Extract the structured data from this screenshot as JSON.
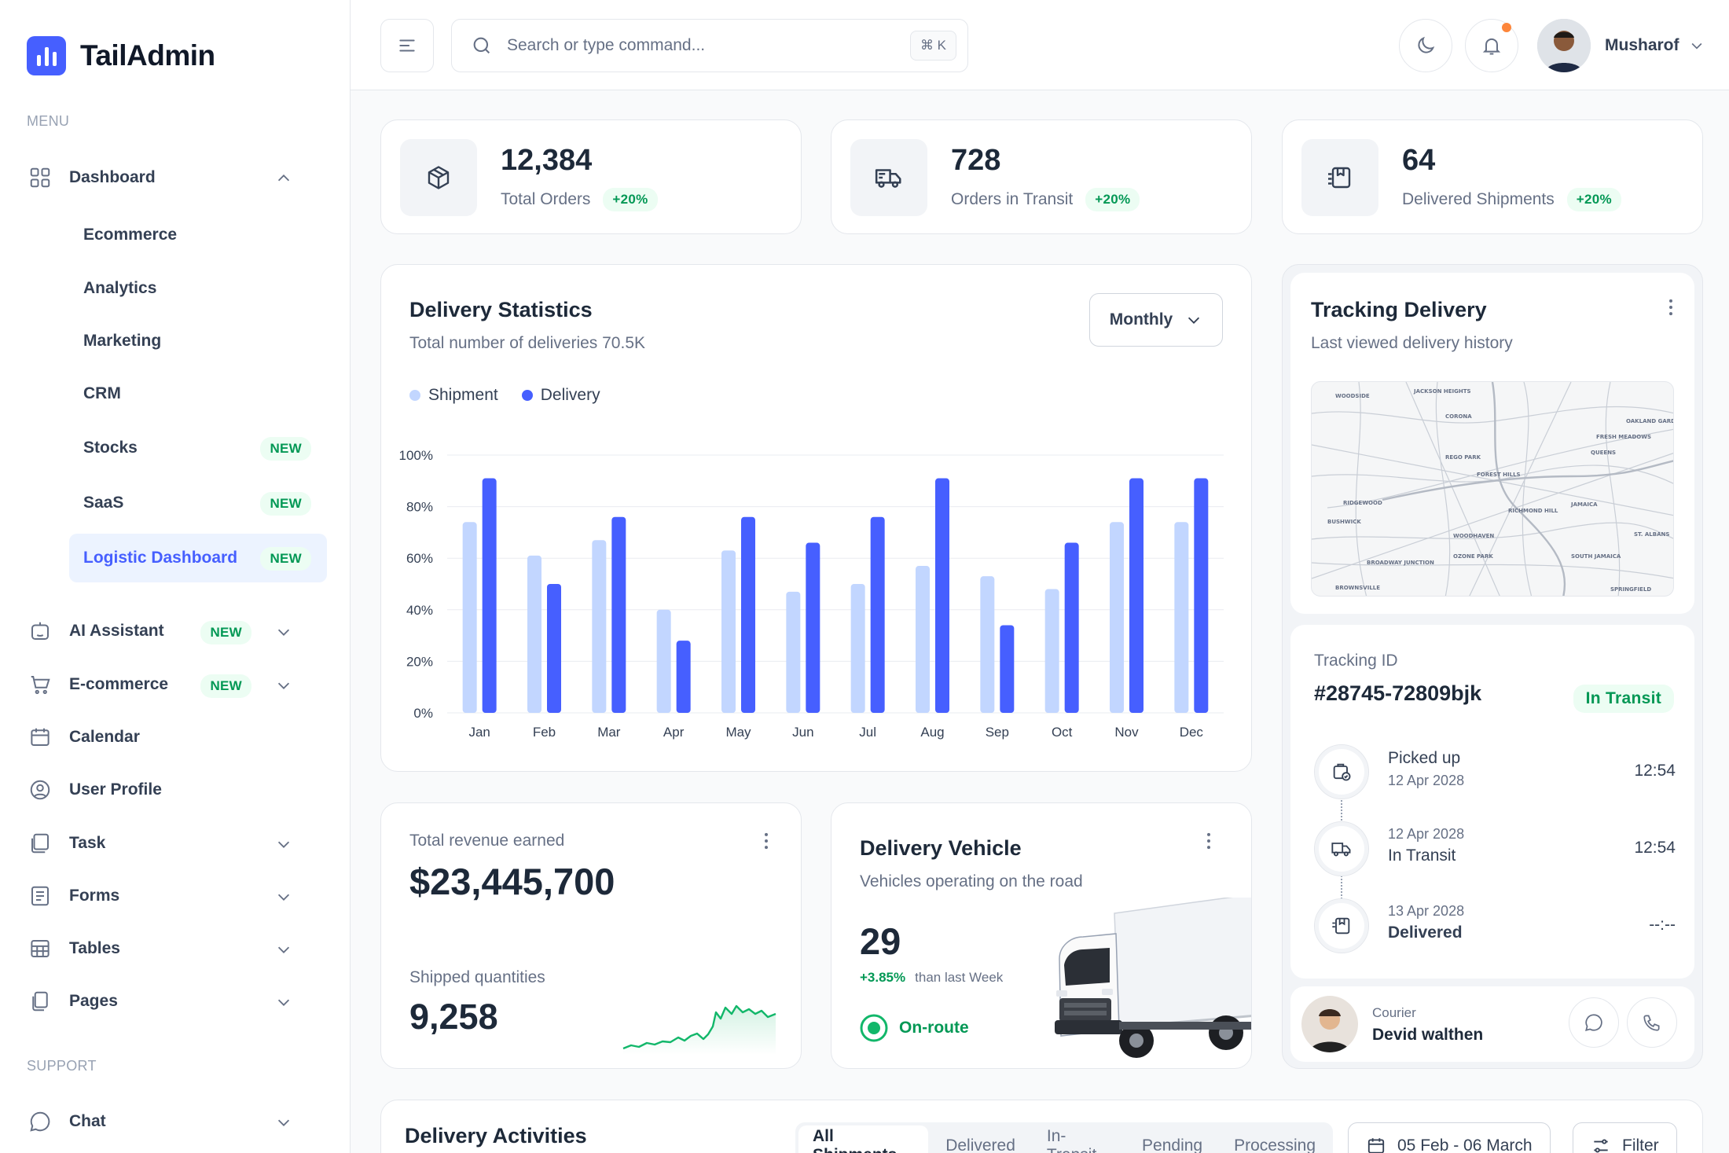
{
  "brand": {
    "name": "TailAdmin",
    "accent": "#465fff"
  },
  "sidebar": {
    "menu_label": "MENU",
    "support_label": "SUPPORT",
    "dashboard": {
      "label": "Dashboard",
      "icon": "grid-icon"
    },
    "sub_items": [
      {
        "label": "Ecommerce"
      },
      {
        "label": "Analytics"
      },
      {
        "label": "Marketing"
      },
      {
        "label": "CRM"
      },
      {
        "label": "Stocks",
        "badge": "NEW"
      },
      {
        "label": "SaaS",
        "badge": "NEW"
      },
      {
        "label": "Logistic Dashboard",
        "badge": "NEW",
        "active": true
      }
    ],
    "items": [
      {
        "label": "AI Assistant",
        "icon": "robot-icon",
        "badge": "NEW"
      },
      {
        "label": "E-commerce",
        "icon": "cart-icon",
        "badge": "NEW"
      },
      {
        "label": "Calendar",
        "icon": "calendar-icon"
      },
      {
        "label": "User Profile",
        "icon": "user-circle-icon"
      },
      {
        "label": "Task",
        "icon": "task-icon"
      },
      {
        "label": "Forms",
        "icon": "forms-icon"
      },
      {
        "label": "Tables",
        "icon": "table-icon"
      },
      {
        "label": "Pages",
        "icon": "pages-icon"
      }
    ],
    "support_items": [
      {
        "label": "Chat",
        "icon": "chat-icon"
      }
    ]
  },
  "header": {
    "search_placeholder": "Search or type command...",
    "shortcut": "⌘ K",
    "user_name": "Musharof"
  },
  "stats": [
    {
      "value": "12,384",
      "label": "Total Orders",
      "change": "+20%",
      "icon": "box-icon"
    },
    {
      "value": "728",
      "label": "Orders in Transit",
      "change": "+20%",
      "icon": "truck-icon"
    },
    {
      "value": "64",
      "label": "Delivered Shipments",
      "change": "+20%",
      "icon": "package-icon"
    }
  ],
  "delivery_stats": {
    "title": "Delivery Statistics",
    "subtitle": "Total number of deliveries 70.5K",
    "period": "Monthly",
    "legend": [
      "Shipment",
      "Delivery"
    ]
  },
  "chart_data": {
    "type": "bar",
    "categories": [
      "Jan",
      "Feb",
      "Mar",
      "Apr",
      "May",
      "Jun",
      "Jul",
      "Aug",
      "Sep",
      "Oct",
      "Nov",
      "Dec"
    ],
    "series": [
      {
        "name": "Shipment",
        "color": "#c2d6ff",
        "values": [
          74,
          61,
          67,
          40,
          63,
          47,
          50,
          57,
          53,
          48,
          74,
          74
        ]
      },
      {
        "name": "Delivery",
        "color": "#465fff",
        "values": [
          91,
          50,
          76,
          28,
          76,
          66,
          76,
          91,
          34,
          66,
          91,
          91
        ]
      }
    ],
    "y_ticks": [
      "0%",
      "20%",
      "40%",
      "60%",
      "80%",
      "100%"
    ],
    "ylim": [
      0,
      100
    ],
    "grid": true,
    "legend_position": "top-left"
  },
  "revenue": {
    "label": "Total revenue earned",
    "value": "$23,445,700",
    "shipped_label": "Shipped quantities",
    "shipped_value": "9,258"
  },
  "vehicle": {
    "title": "Delivery Vehicle",
    "subtitle": "Vehicles operating on the road",
    "count": "29",
    "change": "+3.85%",
    "change_text": "than last Week",
    "status": "On-route"
  },
  "tracking": {
    "title": "Tracking Delivery",
    "subtitle": "Last viewed delivery history",
    "map_labels": [
      "JACKSON HEIGHTS",
      "WOODSIDE",
      "CORONA",
      "OAKLAND GARDENS",
      "FRESH MEADOWS",
      "QUEENS",
      "REGO PARK",
      "FOREST HILLS",
      "RIDGEWOOD",
      "JAMAICA",
      "RICHMOND HILL",
      "BUSHWICK",
      "WOODHAVEN",
      "ST. ALBANS",
      "OZONE PARK",
      "SOUTH JAMAICA",
      "BROADWAY JUNCTION",
      "BROWNSVILLE",
      "SPRINGFIELD"
    ],
    "id_label": "Tracking ID",
    "id": "#28745-72809bjk",
    "status": "In Transit",
    "timeline": [
      {
        "title": "Picked up",
        "date": "12 Apr 2028",
        "time": "12:54",
        "icon": "box-check-icon"
      },
      {
        "title": "In Transit",
        "date": "12 Apr 2028",
        "time": "12:54",
        "icon": "truck-icon"
      },
      {
        "title": "Delivered",
        "date": "13 Apr 2028",
        "time": "--:--",
        "icon": "package-icon"
      }
    ],
    "courier_label": "Courier",
    "courier_name": "Devid walthen"
  },
  "activities": {
    "title": "Delivery Activities",
    "tabs": [
      "All Shipments",
      "Delivered",
      "In-Transit",
      "Pending",
      "Processing"
    ],
    "date_range": "05 Feb - 06 March",
    "filter": "Filter"
  }
}
